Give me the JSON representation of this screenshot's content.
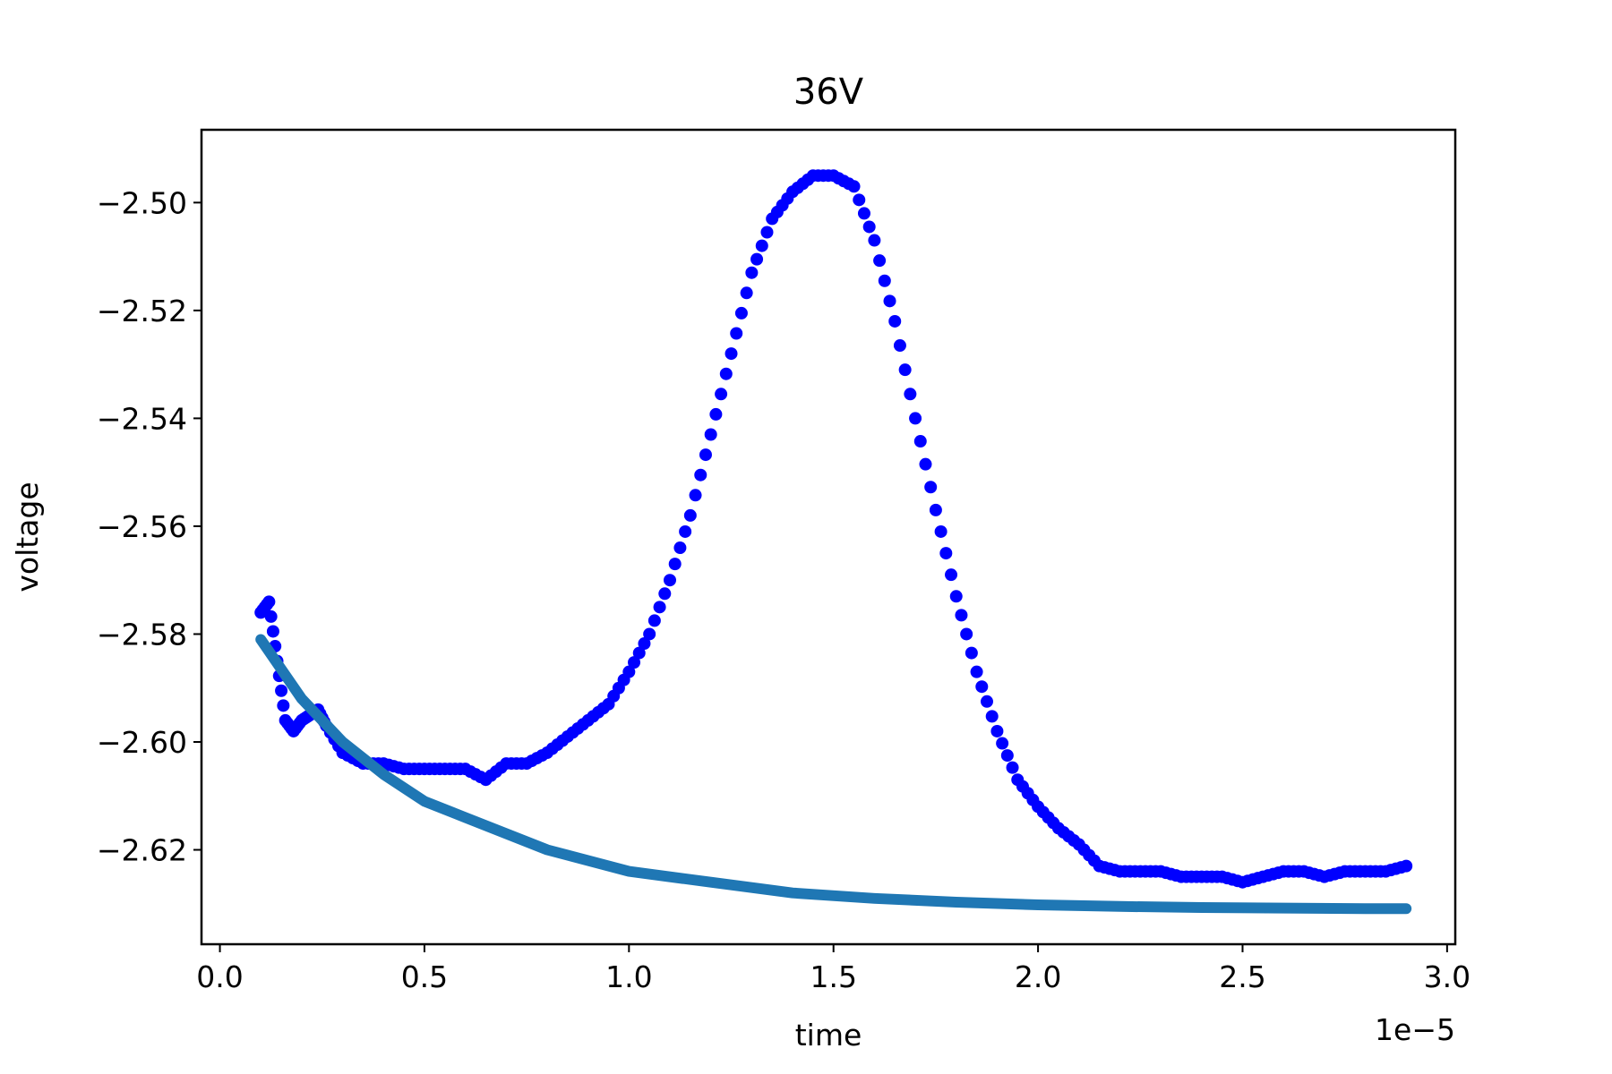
{
  "chart_data": {
    "type": "scatter",
    "title": "36V",
    "xlabel": "time",
    "ylabel": "voltage",
    "x_offset_text": "1e−5",
    "xlim": [
      -0.045,
      3.02
    ],
    "ylim": [
      -2.6375,
      -2.4865
    ],
    "x_tick_values": [
      0.0,
      0.5,
      1.0,
      1.5,
      2.0,
      2.5,
      3.0
    ],
    "x_tick_labels": [
      "0.0",
      "0.5",
      "1.0",
      "1.5",
      "2.0",
      "2.5",
      "3.0"
    ],
    "y_tick_values": [
      -2.5,
      -2.52,
      -2.54,
      -2.56,
      -2.58,
      -2.6,
      -2.62
    ],
    "y_tick_labels": [
      "−2.50",
      "−2.52",
      "−2.54",
      "−2.56",
      "−2.58",
      "−2.60",
      "−2.62"
    ],
    "grid": false,
    "series": [
      {
        "kind": "scatter",
        "color": "#0000ff",
        "x": [
          0.1,
          0.12,
          0.14,
          0.16,
          0.18,
          0.2,
          0.22,
          0.24,
          0.26,
          0.3,
          0.35,
          0.4,
          0.45,
          0.5,
          0.55,
          0.6,
          0.65,
          0.7,
          0.75,
          0.8,
          0.85,
          0.9,
          0.95,
          1.0,
          1.05,
          1.1,
          1.15,
          1.2,
          1.25,
          1.3,
          1.35,
          1.4,
          1.45,
          1.5,
          1.55,
          1.6,
          1.65,
          1.7,
          1.75,
          1.8,
          1.85,
          1.9,
          1.95,
          2.0,
          2.05,
          2.1,
          2.15,
          2.2,
          2.25,
          2.3,
          2.35,
          2.4,
          2.45,
          2.5,
          2.55,
          2.6,
          2.65,
          2.7,
          2.75,
          2.8,
          2.85,
          2.9
        ],
        "y": [
          -2.576,
          -2.574,
          -2.585,
          -2.596,
          -2.598,
          -2.596,
          -2.595,
          -2.594,
          -2.597,
          -2.602,
          -2.604,
          -2.604,
          -2.605,
          -2.605,
          -2.605,
          -2.605,
          -2.607,
          -2.604,
          -2.604,
          -2.602,
          -2.599,
          -2.596,
          -2.593,
          -2.587,
          -2.58,
          -2.57,
          -2.558,
          -2.543,
          -2.528,
          -2.513,
          -2.503,
          -2.498,
          -2.495,
          -2.495,
          -2.497,
          -2.507,
          -2.522,
          -2.54,
          -2.557,
          -2.573,
          -2.587,
          -2.598,
          -2.607,
          -2.612,
          -2.616,
          -2.619,
          -2.623,
          -2.624,
          -2.624,
          -2.624,
          -2.625,
          -2.625,
          -2.625,
          -2.626,
          -2.625,
          -2.624,
          -2.624,
          -2.625,
          -2.624,
          -2.624,
          -2.624,
          -2.623
        ]
      },
      {
        "kind": "line",
        "color": "#1f77b4",
        "x": [
          0.1,
          0.2,
          0.3,
          0.4,
          0.5,
          0.6,
          0.8,
          1.0,
          1.2,
          1.4,
          1.6,
          1.8,
          2.0,
          2.2,
          2.4,
          2.6,
          2.8,
          2.9
        ],
        "y": [
          -2.581,
          -2.592,
          -2.6,
          -2.606,
          -2.611,
          -2.614,
          -2.62,
          -2.624,
          -2.626,
          -2.628,
          -2.629,
          -2.6297,
          -2.6302,
          -2.6305,
          -2.6307,
          -2.6308,
          -2.6309,
          -2.6309
        ]
      }
    ]
  }
}
